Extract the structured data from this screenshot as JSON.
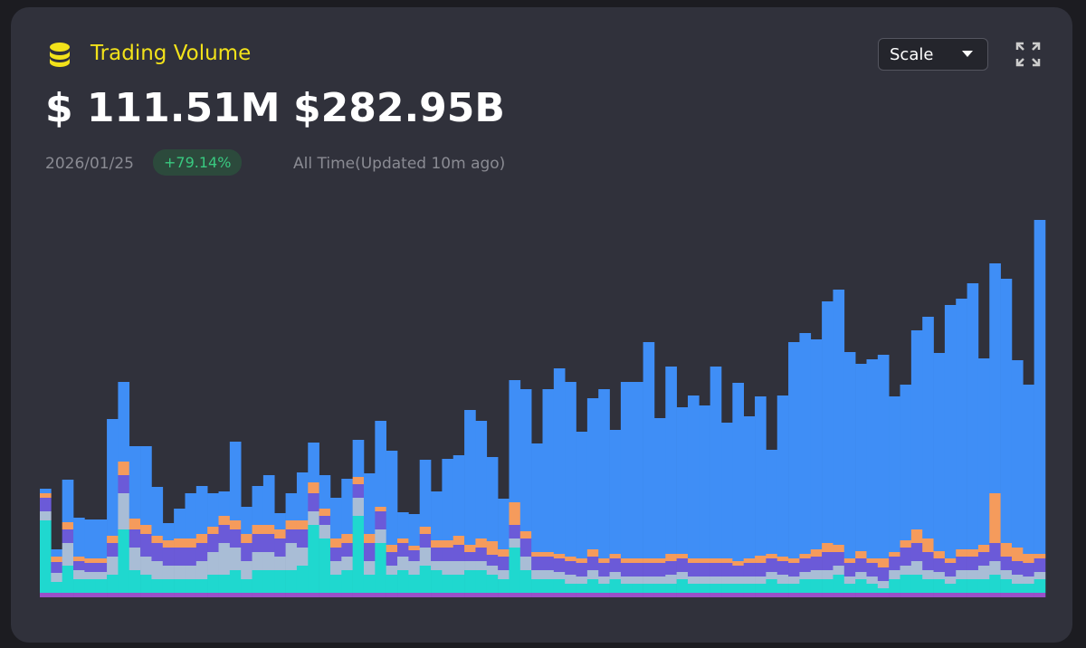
{
  "header": {
    "title": "Trading Volume",
    "daily_value": "$ 111.51M",
    "total_value": "$282.95B",
    "date": "2026/01/25",
    "change": "+79.14%",
    "total_caption": "All Time(Updated 10m ago)",
    "scale_button": "Scale"
  },
  "chart_data": {
    "type": "bar",
    "stacked": true,
    "series": [
      {
        "color": "#9a4fc8",
        "values": [
          5,
          5,
          5,
          5,
          5,
          5,
          5,
          5,
          5,
          5,
          5,
          5,
          5,
          5,
          5,
          5,
          5,
          5,
          5,
          5,
          5,
          5,
          5,
          5,
          5,
          5,
          5,
          5,
          5,
          5,
          5,
          5,
          5,
          5,
          5,
          5,
          5,
          5,
          5,
          5,
          5,
          5,
          5,
          5,
          5,
          5,
          5,
          5,
          5,
          5,
          5,
          5,
          5,
          5,
          5,
          5,
          5,
          5,
          5,
          5,
          5,
          5,
          5,
          5,
          5,
          5,
          5,
          5,
          5,
          5,
          5,
          5,
          5,
          5,
          5,
          5,
          5,
          5,
          5,
          5,
          5,
          5,
          5,
          5,
          5,
          5,
          5,
          5,
          5,
          5
        ]
      },
      {
        "color": "#1fd8cf",
        "values": [
          80,
          12,
          30,
          15,
          15,
          15,
          20,
          70,
          25,
          20,
          15,
          15,
          15,
          15,
          15,
          20,
          20,
          25,
          15,
          25,
          25,
          25,
          25,
          30,
          75,
          60,
          20,
          25,
          85,
          20,
          55,
          20,
          25,
          20,
          30,
          25,
          20,
          20,
          25,
          25,
          20,
          15,
          50,
          25,
          15,
          15,
          15,
          10,
          10,
          15,
          10,
          15,
          10,
          10,
          10,
          10,
          10,
          15,
          10,
          10,
          10,
          10,
          10,
          10,
          10,
          15,
          10,
          10,
          15,
          15,
          15,
          20,
          10,
          15,
          10,
          5,
          15,
          20,
          20,
          15,
          15,
          10,
          15,
          15,
          15,
          20,
          15,
          10,
          10,
          15
        ]
      },
      {
        "color": "#a9bdd6",
        "values": [
          10,
          10,
          25,
          10,
          8,
          8,
          20,
          40,
          25,
          20,
          20,
          15,
          15,
          15,
          20,
          25,
          35,
          25,
          20,
          20,
          20,
          15,
          30,
          20,
          15,
          15,
          15,
          15,
          20,
          15,
          15,
          10,
          15,
          15,
          20,
          10,
          15,
          15,
          10,
          10,
          10,
          10,
          10,
          15,
          10,
          10,
          8,
          10,
          8,
          10,
          8,
          8,
          8,
          8,
          8,
          8,
          10,
          8,
          8,
          8,
          8,
          8,
          8,
          8,
          8,
          8,
          10,
          8,
          8,
          10,
          10,
          10,
          8,
          8,
          8,
          8,
          10,
          10,
          15,
          10,
          8,
          8,
          10,
          10,
          15,
          15,
          10,
          10,
          8,
          8
        ]
      },
      {
        "color": "#6b5ad8",
        "values": [
          15,
          12,
          15,
          10,
          10,
          10,
          15,
          20,
          20,
          25,
          20,
          20,
          20,
          20,
          20,
          20,
          20,
          20,
          20,
          20,
          20,
          20,
          15,
          20,
          20,
          10,
          15,
          15,
          15,
          20,
          20,
          15,
          15,
          12,
          15,
          15,
          15,
          18,
          10,
          15,
          12,
          15,
          15,
          20,
          15,
          15,
          15,
          15,
          15,
          15,
          15,
          15,
          15,
          15,
          15,
          15,
          15,
          15,
          15,
          15,
          15,
          15,
          12,
          15,
          15,
          15,
          15,
          15,
          15,
          15,
          20,
          15,
          15,
          15,
          15,
          15,
          15,
          20,
          20,
          20,
          15,
          15,
          15,
          15,
          15,
          20,
          15,
          15,
          15,
          15
        ]
      },
      {
        "color": "#f59b5c",
        "values": [
          5,
          6,
          8,
          5,
          5,
          5,
          8,
          15,
          12,
          10,
          8,
          8,
          10,
          10,
          10,
          8,
          10,
          10,
          10,
          10,
          10,
          10,
          10,
          10,
          12,
          8,
          10,
          10,
          8,
          10,
          5,
          8,
          5,
          5,
          8,
          8,
          8,
          10,
          8,
          10,
          15,
          8,
          25,
          8,
          5,
          5,
          5,
          5,
          5,
          8,
          5,
          5,
          5,
          5,
          5,
          5,
          8,
          5,
          5,
          5,
          5,
          5,
          5,
          5,
          8,
          5,
          5,
          5,
          5,
          8,
          10,
          8,
          5,
          8,
          5,
          10,
          5,
          8,
          15,
          15,
          8,
          5,
          8,
          8,
          8,
          55,
          15,
          15,
          10,
          5
        ]
      },
      {
        "color": "#3f8ef6",
        "values": [
          5,
          8,
          47,
          43,
          43,
          43,
          129,
          88,
          80,
          87,
          54,
          19,
          33,
          50,
          53,
          37,
          27,
          87,
          30,
          43,
          55,
          18,
          30,
          53,
          44,
          37,
          45,
          61,
          41,
          67,
          95,
          104,
          29,
          35,
          74,
          54,
          90,
          89,
          149,
          130,
          93,
          56,
          135,
          157,
          120,
          180,
          205,
          193,
          140,
          167,
          187,
          137,
          195,
          195,
          239,
          155,
          207,
          162,
          180,
          169,
          212,
          150,
          197,
          157,
          176,
          115,
          178,
          239,
          244,
          232,
          267,
          282,
          228,
          207,
          220,
          225,
          172,
          172,
          220,
          245,
          219,
          280,
          277,
          294,
          206,
          254,
          292,
          207,
          187,
          369
        ]
      }
    ]
  }
}
